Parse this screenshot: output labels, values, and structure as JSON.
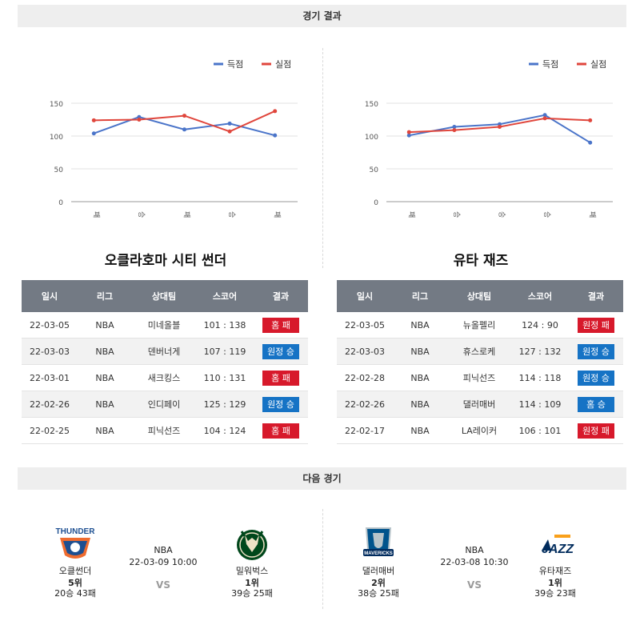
{
  "sections": {
    "results_title": "경기 결과",
    "next_title": "다음 경기"
  },
  "colors": {
    "scored": "#4a74c9",
    "conceded": "#e0463c",
    "home_loss": "#d7192b",
    "away_win": "#1673c5",
    "home_win": "#1673c5",
    "away_loss": "#d7192b",
    "header_bg": "#737a84"
  },
  "columns": [
    "일시",
    "리그",
    "상대팀",
    "스코어",
    "결과"
  ],
  "chart_data": [
    {
      "type": "line",
      "categories": [
        "패",
        "승",
        "패",
        "승",
        "패"
      ],
      "series": [
        {
          "name": "득점",
          "color": "#4a74c9",
          "values": [
            104,
            129,
            110,
            119,
            101
          ]
        },
        {
          "name": "실점",
          "color": "#e0463c",
          "values": [
            124,
            125,
            131,
            107,
            138
          ]
        }
      ],
      "yticks": [
        0,
        50,
        100,
        150
      ],
      "ylim": [
        0,
        150
      ],
      "legend": "top-right",
      "grid": true
    },
    {
      "type": "line",
      "categories": [
        "패",
        "승",
        "승",
        "승",
        "패"
      ],
      "series": [
        {
          "name": "득점",
          "color": "#4a74c9",
          "values": [
            101,
            114,
            118,
            132,
            90
          ]
        },
        {
          "name": "실점",
          "color": "#e0463c",
          "values": [
            106,
            109,
            114,
            127,
            124
          ]
        }
      ],
      "yticks": [
        0,
        50,
        100,
        150
      ],
      "ylim": [
        0,
        150
      ],
      "legend": "top-right",
      "grid": true
    }
  ],
  "teams": [
    {
      "name": "오클라호마 시티 썬더",
      "games": [
        {
          "date": "22-03-05",
          "league": "NBA",
          "opponent": "미네올블",
          "score": "101 : 138",
          "result": "홈 패",
          "color": "#d7192b"
        },
        {
          "date": "22-03-03",
          "league": "NBA",
          "opponent": "덴버너게",
          "score": "107 : 119",
          "result": "원정 승",
          "color": "#1673c5"
        },
        {
          "date": "22-03-01",
          "league": "NBA",
          "opponent": "새크킹스",
          "score": "110 : 131",
          "result": "홈 패",
          "color": "#d7192b"
        },
        {
          "date": "22-02-26",
          "league": "NBA",
          "opponent": "인디페이",
          "score": "125 : 129",
          "result": "원정 승",
          "color": "#1673c5"
        },
        {
          "date": "22-02-25",
          "league": "NBA",
          "opponent": "피닉선즈",
          "score": "104 : 124",
          "result": "홈 패",
          "color": "#d7192b"
        }
      ]
    },
    {
      "name": "유타 재즈",
      "games": [
        {
          "date": "22-03-05",
          "league": "NBA",
          "opponent": "뉴올펠리",
          "score": "124 : 90",
          "result": "원정 패",
          "color": "#d7192b"
        },
        {
          "date": "22-03-03",
          "league": "NBA",
          "opponent": "휴스로케",
          "score": "127 : 132",
          "result": "원정 승",
          "color": "#1673c5"
        },
        {
          "date": "22-02-28",
          "league": "NBA",
          "opponent": "피닉선즈",
          "score": "114 : 118",
          "result": "원정 승",
          "color": "#1673c5"
        },
        {
          "date": "22-02-26",
          "league": "NBA",
          "opponent": "댈러매버",
          "score": "114 : 109",
          "result": "홈 승",
          "color": "#1673c5"
        },
        {
          "date": "22-02-17",
          "league": "NBA",
          "opponent": "LA레이커",
          "score": "106 : 101",
          "result": "원정 패",
          "color": "#d7192b"
        }
      ]
    }
  ],
  "next_games": [
    {
      "league": "NBA",
      "datetime": "22-03-09 10:00",
      "vs": "VS",
      "home": {
        "name": "오클썬더",
        "rank": "5위",
        "record": "20승 43패",
        "logo": "THUNDER"
      },
      "away": {
        "name": "밀워벅스",
        "rank": "1위",
        "record": "39승 25패",
        "logo": ""
      }
    },
    {
      "league": "NBA",
      "datetime": "22-03-08 10:30",
      "vs": "VS",
      "home": {
        "name": "댈러매버",
        "rank": "2위",
        "record": "38승 25패",
        "logo": "MAVERICKS"
      },
      "away": {
        "name": "유타재즈",
        "rank": "1위",
        "record": "39승 23패",
        "logo": "JAZZ"
      }
    }
  ]
}
